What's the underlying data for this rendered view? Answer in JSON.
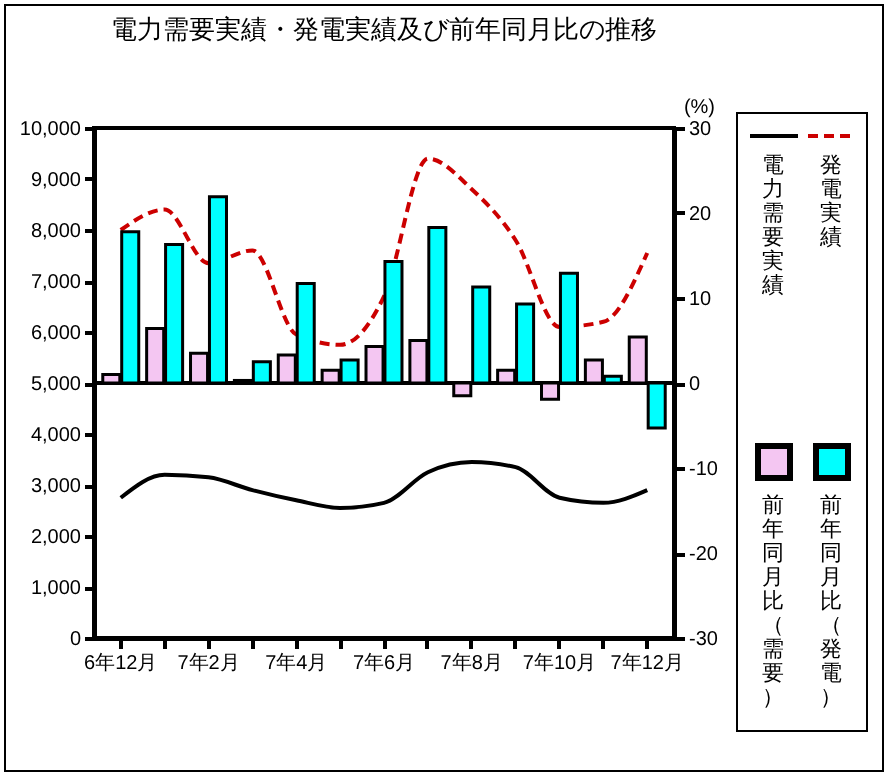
{
  "chart_data": {
    "type": "bar",
    "title": "電力需要実績・発電実績及び前年同月比の推移",
    "y2label": "(%)",
    "categories": [
      "6年12月",
      null,
      "7年2月",
      null,
      "7年4月",
      null,
      "7年6月",
      null,
      "7年8月",
      null,
      "7年10月",
      null,
      "7年12月"
    ],
    "series": [
      {
        "name": "電力需要実績",
        "type": "line",
        "color": "#000000",
        "line_style": "solid",
        "values": [
          2750,
          3200,
          3150,
          2900,
          2700,
          2550,
          2650,
          3250,
          3450,
          3350,
          2750,
          2650,
          2900
        ]
      },
      {
        "name": "発電実績",
        "type": "line",
        "color": "#cc0000",
        "line_style": "dashed",
        "values": [
          8000,
          8400,
          7350,
          7600,
          5950,
          5750,
          6700,
          9400,
          8800,
          7800,
          6100,
          6200,
          7550
        ]
      },
      {
        "name": "前年同月比（需要）",
        "axis": "y2",
        "color": "#f4c6f2",
        "values": [
          1.0,
          6.4,
          3.5,
          0.3,
          3.3,
          1.5,
          4.3,
          5.0,
          -1.5,
          1.5,
          -1.9,
          2.7,
          5.4
        ]
      },
      {
        "name": "前年同月比（発電）",
        "axis": "y2",
        "color": "#00ffff",
        "values": [
          17.8,
          16.3,
          21.9,
          2.5,
          11.7,
          2.7,
          14.3,
          18.3,
          11.3,
          9.3,
          12.9,
          0.8,
          -5.3
        ]
      }
    ],
    "ylim": [
      0,
      10000
    ],
    "yticks": [
      0,
      {
        "value": 1000,
        "label": "1,000"
      },
      {
        "value": 2000,
        "label": "2,000"
      },
      {
        "value": 3000,
        "label": "3,000"
      },
      {
        "value": 4000,
        "label": "4,000"
      },
      {
        "value": 5000,
        "label": "5,000"
      },
      {
        "value": 6000,
        "label": "6,000"
      },
      {
        "value": 7000,
        "label": "7,000"
      },
      {
        "value": 8000,
        "label": "8,000"
      },
      {
        "value": 9000,
        "label": "9,000"
      },
      {
        "value": 10000,
        "label": "10,000"
      }
    ],
    "y2lim": [
      -30,
      30
    ],
    "y2ticks": [
      -30,
      -20,
      -10,
      0,
      10,
      20,
      30
    ],
    "ref_lines": [
      {
        "axis": "y2",
        "value": 0
      }
    ],
    "legend": "right"
  }
}
